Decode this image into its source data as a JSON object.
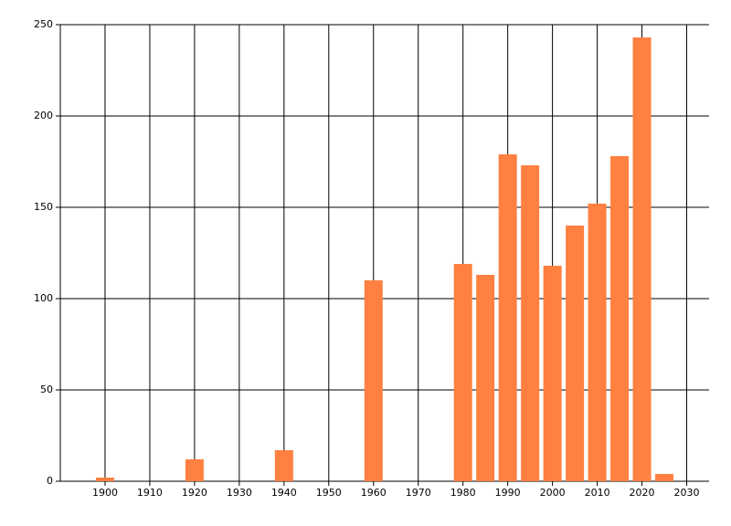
{
  "chart_data": {
    "type": "bar",
    "x": [
      1900,
      1920,
      1940,
      1960,
      1980,
      1985,
      1990,
      1995,
      2000,
      2005,
      2010,
      2015,
      2020,
      2025
    ],
    "values": [
      2,
      12,
      17,
      110,
      119,
      113,
      179,
      173,
      118,
      140,
      152,
      178,
      243,
      4
    ],
    "color": "#ff8040",
    "xlim": [
      1890,
      2035
    ],
    "xticks": [
      1900,
      1910,
      1920,
      1930,
      1940,
      1950,
      1960,
      1970,
      1980,
      1990,
      2000,
      2010,
      2020,
      2030
    ],
    "ylim": [
      0,
      250
    ],
    "yticks": [
      0,
      50,
      100,
      150,
      200,
      250
    ],
    "grid": true
  }
}
